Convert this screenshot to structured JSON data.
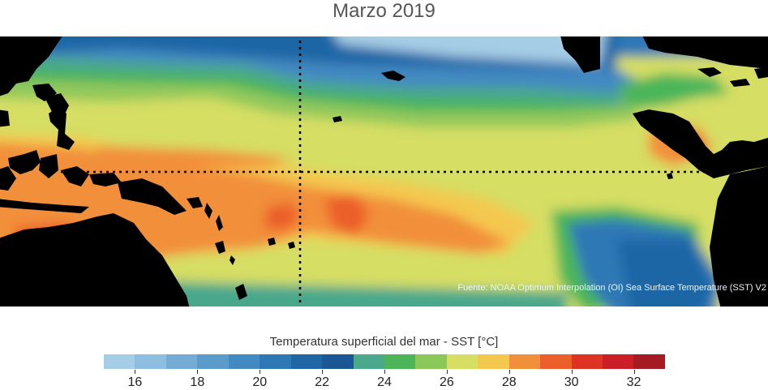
{
  "title": "Marzo 2019",
  "source": "Fuente: NOAA Optimum Interpolation (OI) Sea Surface Temperature (SST) V2",
  "colorbar": {
    "label": "Temperatura superficial del mar - SST  [°C]",
    "min": 15,
    "max": 33,
    "colors": [
      "#a6cde6",
      "#8ebedf",
      "#74acd6",
      "#5b9bcc",
      "#4389c2",
      "#2e78b6",
      "#1f66a6",
      "#1a5793",
      "#4aa88c",
      "#4cb55a",
      "#8cc75a",
      "#d6de63",
      "#f4c84f",
      "#f28f3a",
      "#ec5f2a",
      "#de3323",
      "#cc1e26",
      "#a51b22"
    ],
    "ticks": [
      "16",
      "18",
      "20",
      "22",
      "24",
      "26",
      "28",
      "30",
      "32"
    ]
  }
}
